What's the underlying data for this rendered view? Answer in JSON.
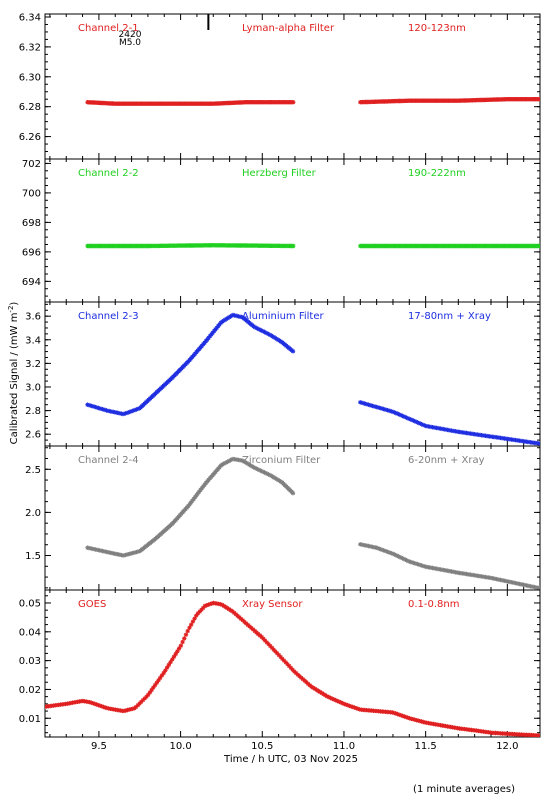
{
  "figure": {
    "ylabel": "Calibrated Signal / (mW m",
    "ylabel_sup": "-2",
    "ylabel_end": ")",
    "xlabel": "Time / h UTC, 03 Nov 2025",
    "footer": "(1 minute averages)",
    "flare_marker": {
      "x": 10.17,
      "label_top": "2420",
      "label_bottom": "M5.0"
    }
  },
  "chart_data": [
    {
      "type": "scatter",
      "channel": "Channel 2-1",
      "filter": "Lyman-alpha Filter",
      "band": "120-123nm",
      "color": "#e02020",
      "xlim": [
        9.17,
        12.2
      ],
      "ylim": [
        6.245,
        6.342
      ],
      "yticks": [
        6.26,
        6.28,
        6.3,
        6.32,
        6.34
      ],
      "gap": [
        10.69,
        11.1
      ],
      "series": [
        {
          "segment": 1,
          "x": [
            9.43,
            9.6,
            9.8,
            10.0,
            10.2,
            10.4,
            10.6,
            10.69
          ],
          "y": [
            6.283,
            6.282,
            6.282,
            6.282,
            6.282,
            6.283,
            6.283,
            6.283
          ]
        },
        {
          "segment": 2,
          "x": [
            11.1,
            11.4,
            11.7,
            12.0,
            12.2
          ],
          "y": [
            6.283,
            6.284,
            6.284,
            6.285,
            6.285
          ]
        }
      ]
    },
    {
      "type": "scatter",
      "channel": "Channel 2-2",
      "filter": "Herzberg Filter",
      "band": "190-222nm",
      "color": "#20d020",
      "xlim": [
        9.17,
        12.2
      ],
      "ylim": [
        692.6,
        702.3
      ],
      "yticks": [
        694,
        696,
        698,
        700,
        702
      ],
      "gap": [
        10.69,
        11.1
      ],
      "series": [
        {
          "segment": 1,
          "x": [
            9.43,
            9.8,
            10.2,
            10.69
          ],
          "y": [
            696.4,
            696.4,
            696.45,
            696.4
          ]
        },
        {
          "segment": 2,
          "x": [
            11.1,
            11.6,
            12.2
          ],
          "y": [
            696.4,
            696.4,
            696.4
          ]
        }
      ]
    },
    {
      "type": "scatter",
      "channel": "Channel 2-3",
      "filter": "Aluminium Filter",
      "band": "17-80nm + Xray",
      "color": "#1e2ee0",
      "xlim": [
        9.17,
        12.2
      ],
      "ylim": [
        2.5,
        3.72
      ],
      "yticks": [
        2.6,
        2.8,
        3.0,
        3.2,
        3.4,
        3.6
      ],
      "gap": [
        10.69,
        11.1
      ],
      "series": [
        {
          "segment": 1,
          "x": [
            9.43,
            9.55,
            9.65,
            9.75,
            9.85,
            9.95,
            10.05,
            10.15,
            10.25,
            10.32,
            10.38,
            10.45,
            10.55,
            10.62,
            10.69
          ],
          "y": [
            2.85,
            2.8,
            2.77,
            2.82,
            2.95,
            3.08,
            3.22,
            3.38,
            3.55,
            3.61,
            3.59,
            3.51,
            3.44,
            3.38,
            3.3
          ]
        },
        {
          "segment": 2,
          "x": [
            11.1,
            11.2,
            11.3,
            11.4,
            11.5,
            11.7,
            11.9,
            12.05,
            12.2
          ],
          "y": [
            2.87,
            2.83,
            2.79,
            2.73,
            2.67,
            2.62,
            2.58,
            2.55,
            2.52
          ]
        }
      ]
    },
    {
      "type": "scatter",
      "channel": "Channel 2-4",
      "filter": "Zirconium Filter",
      "band": "6-20nm + Xray",
      "color": "#808080",
      "xlim": [
        9.17,
        12.2
      ],
      "ylim": [
        1.1,
        2.77
      ],
      "yticks": [
        1.5,
        2.0,
        2.5
      ],
      "gap": [
        10.69,
        11.1
      ],
      "series": [
        {
          "segment": 1,
          "x": [
            9.43,
            9.55,
            9.65,
            9.75,
            9.85,
            9.95,
            10.05,
            10.15,
            10.25,
            10.32,
            10.38,
            10.45,
            10.55,
            10.62,
            10.69
          ],
          "y": [
            1.59,
            1.54,
            1.5,
            1.55,
            1.7,
            1.87,
            2.08,
            2.33,
            2.55,
            2.62,
            2.6,
            2.52,
            2.43,
            2.35,
            2.22
          ]
        },
        {
          "segment": 2,
          "x": [
            11.1,
            11.2,
            11.3,
            11.4,
            11.5,
            11.7,
            11.9,
            12.05,
            12.2
          ],
          "y": [
            1.63,
            1.59,
            1.52,
            1.43,
            1.37,
            1.3,
            1.24,
            1.18,
            1.12
          ]
        }
      ]
    },
    {
      "type": "scatter",
      "channel": "GOES",
      "filter": "Xray Sensor",
      "band": "0.1-0.8nm",
      "color": "#e02020",
      "xlim": [
        9.17,
        12.2
      ],
      "ylim": [
        0.0035,
        0.0545
      ],
      "yticks": [
        0.01,
        0.02,
        0.03,
        0.04,
        0.05
      ],
      "series": [
        {
          "segment": 1,
          "x": [
            9.17,
            9.3,
            9.4,
            9.45,
            9.55,
            9.65,
            9.72,
            9.8,
            9.9,
            10.0,
            10.05,
            10.1,
            10.15,
            10.2,
            10.25,
            10.32,
            10.4,
            10.5,
            10.6,
            10.7,
            10.8,
            10.9,
            11.0,
            11.1,
            11.2,
            11.3,
            11.4,
            11.5,
            11.6,
            11.7,
            11.8,
            11.9,
            12.0,
            12.1,
            12.2
          ],
          "y": [
            0.014,
            0.015,
            0.016,
            0.0155,
            0.0135,
            0.0125,
            0.0135,
            0.018,
            0.026,
            0.035,
            0.041,
            0.046,
            0.049,
            0.05,
            0.0495,
            0.047,
            0.043,
            0.038,
            0.032,
            0.026,
            0.021,
            0.0175,
            0.015,
            0.013,
            0.0125,
            0.012,
            0.01,
            0.0085,
            0.0075,
            0.0065,
            0.0058,
            0.005,
            0.0046,
            0.0043,
            0.004
          ]
        }
      ]
    }
  ]
}
